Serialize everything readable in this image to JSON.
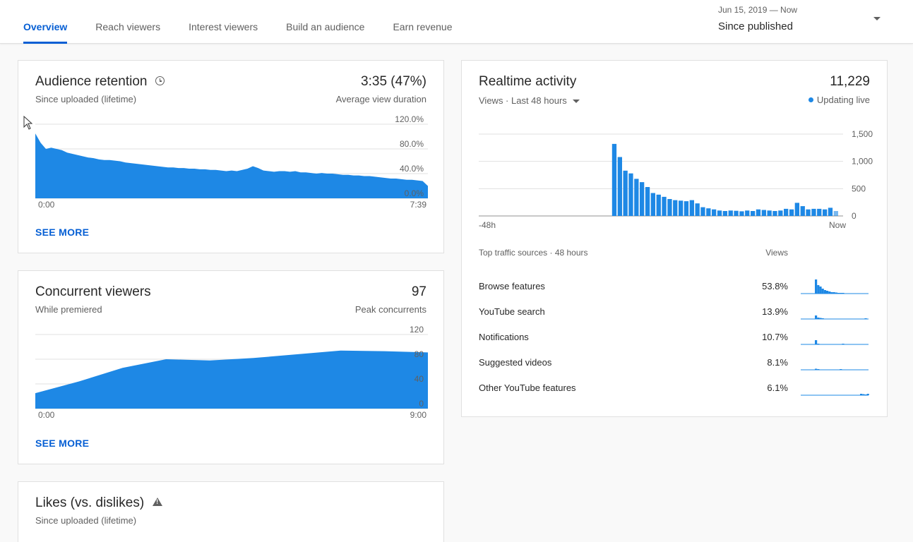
{
  "tabs": [
    {
      "label": "Overview",
      "active": true
    },
    {
      "label": "Reach viewers",
      "active": false
    },
    {
      "label": "Interest viewers",
      "active": false
    },
    {
      "label": "Build an audience",
      "active": false
    },
    {
      "label": "Earn revenue",
      "active": false
    }
  ],
  "date_range": {
    "range": "Jun 15, 2019 — Now",
    "label": "Since published"
  },
  "audience_retention": {
    "title": "Audience retention",
    "subtitle": "Since uploaded (lifetime)",
    "metric": "3:35 (47%)",
    "metric_label": "Average view duration",
    "see_more": "SEE MORE",
    "chart_data": {
      "type": "area",
      "x_start_label": "0:00",
      "x_end_label": "7:39",
      "y_ticks": [
        "120.0%",
        "80.0%",
        "40.0%",
        "0.0%"
      ],
      "ylim": [
        0,
        120
      ],
      "values": [
        105,
        90,
        80,
        82,
        80,
        78,
        74,
        72,
        70,
        68,
        66,
        65,
        63,
        62,
        62,
        61,
        60,
        58,
        57,
        56,
        55,
        54,
        53,
        52,
        51,
        50,
        50,
        49,
        49,
        48,
        48,
        47,
        47,
        46,
        46,
        45,
        44,
        45,
        44,
        46,
        48,
        52,
        49,
        45,
        44,
        43,
        44,
        44,
        43,
        44,
        42,
        42,
        41,
        40,
        41,
        40,
        40,
        39,
        38,
        38,
        37,
        37,
        36,
        36,
        35,
        34,
        33,
        32,
        32,
        31,
        30,
        30,
        29,
        28,
        20
      ]
    }
  },
  "concurrent_viewers": {
    "title": "Concurrent viewers",
    "subtitle": "While premiered",
    "metric": "97",
    "metric_label": "Peak concurrents",
    "see_more": "SEE MORE",
    "chart_data": {
      "type": "area",
      "x_start_label": "0:00",
      "x_end_label": "9:00",
      "y_ticks": [
        "120",
        "80",
        "40",
        "0"
      ],
      "ylim": [
        0,
        120
      ],
      "x": [
        0,
        1,
        2,
        3,
        4,
        5,
        6,
        7,
        8,
        9
      ],
      "values": [
        25,
        44,
        66,
        80,
        78,
        82,
        88,
        94,
        93,
        91
      ]
    }
  },
  "likes": {
    "title": "Likes (vs. dislikes)",
    "subtitle": "Since uploaded (lifetime)"
  },
  "realtime": {
    "title": "Realtime activity",
    "metric": "11,229",
    "views_label": "Views · Last 48 hours",
    "live_label": "Updating live",
    "chart_data": {
      "type": "bar",
      "x_start_label": "-48h",
      "x_end_label": "Now",
      "y_ticks": [
        "1,500",
        "1,000",
        "500",
        "0"
      ],
      "ylim": [
        0,
        1500
      ],
      "values": [
        0,
        0,
        0,
        0,
        0,
        0,
        0,
        0,
        0,
        0,
        0,
        0,
        0,
        0,
        0,
        0,
        0,
        0,
        0,
        0,
        0,
        0,
        0,
        0,
        1320,
        1080,
        830,
        780,
        680,
        620,
        530,
        420,
        390,
        350,
        310,
        290,
        280,
        270,
        290,
        230,
        160,
        140,
        120,
        100,
        90,
        100,
        95,
        85,
        100,
        90,
        120,
        110,
        100,
        90,
        100,
        130,
        120,
        240,
        180,
        120,
        130,
        130,
        120,
        150,
        90
      ]
    },
    "traffic_header": "Top traffic sources · 48 hours",
    "views_col": "Views",
    "traffic_sources": [
      {
        "name": "Browse features",
        "pct": "53.8%",
        "spark": [
          20,
          12,
          10,
          7,
          5,
          4,
          3,
          2,
          2,
          1.5,
          1,
          1,
          1,
          0.5,
          0.5,
          0,
          0.5,
          0,
          0.5,
          0,
          0,
          0.5,
          0,
          0
        ]
      },
      {
        "name": "YouTube search",
        "pct": "13.9%",
        "spark": [
          5,
          2,
          1.5,
          1,
          0.5,
          0.5,
          0,
          0.5,
          0,
          0,
          0.5,
          0,
          0.5,
          0,
          0,
          0,
          0,
          0.5,
          0,
          0,
          0.5,
          0,
          1,
          0
        ]
      },
      {
        "name": "Notifications",
        "pct": "10.7%",
        "spark": [
          6,
          1,
          0.5,
          0,
          0.5,
          0,
          0,
          0,
          0,
          0,
          0,
          0.5,
          1,
          0,
          0,
          0,
          0,
          0,
          0,
          0,
          0,
          0,
          0,
          0
        ]
      },
      {
        "name": "Suggested videos",
        "pct": "8.1%",
        "spark": [
          1.5,
          1,
          0.5,
          0.5,
          0,
          0.5,
          0,
          0,
          0,
          0,
          0,
          1,
          0,
          0,
          0,
          0,
          0,
          0,
          0,
          0,
          0,
          0,
          0,
          0
        ]
      },
      {
        "name": "Other YouTube features",
        "pct": "6.1%",
        "spark": [
          0,
          0,
          0,
          0,
          0,
          0,
          0,
          0,
          0,
          0,
          0,
          0,
          0,
          0,
          0,
          0,
          0,
          0,
          0,
          0,
          2,
          1.5,
          1,
          2
        ]
      }
    ]
  },
  "colors": {
    "accent": "#065fd4",
    "chart": "#1e88e5"
  }
}
